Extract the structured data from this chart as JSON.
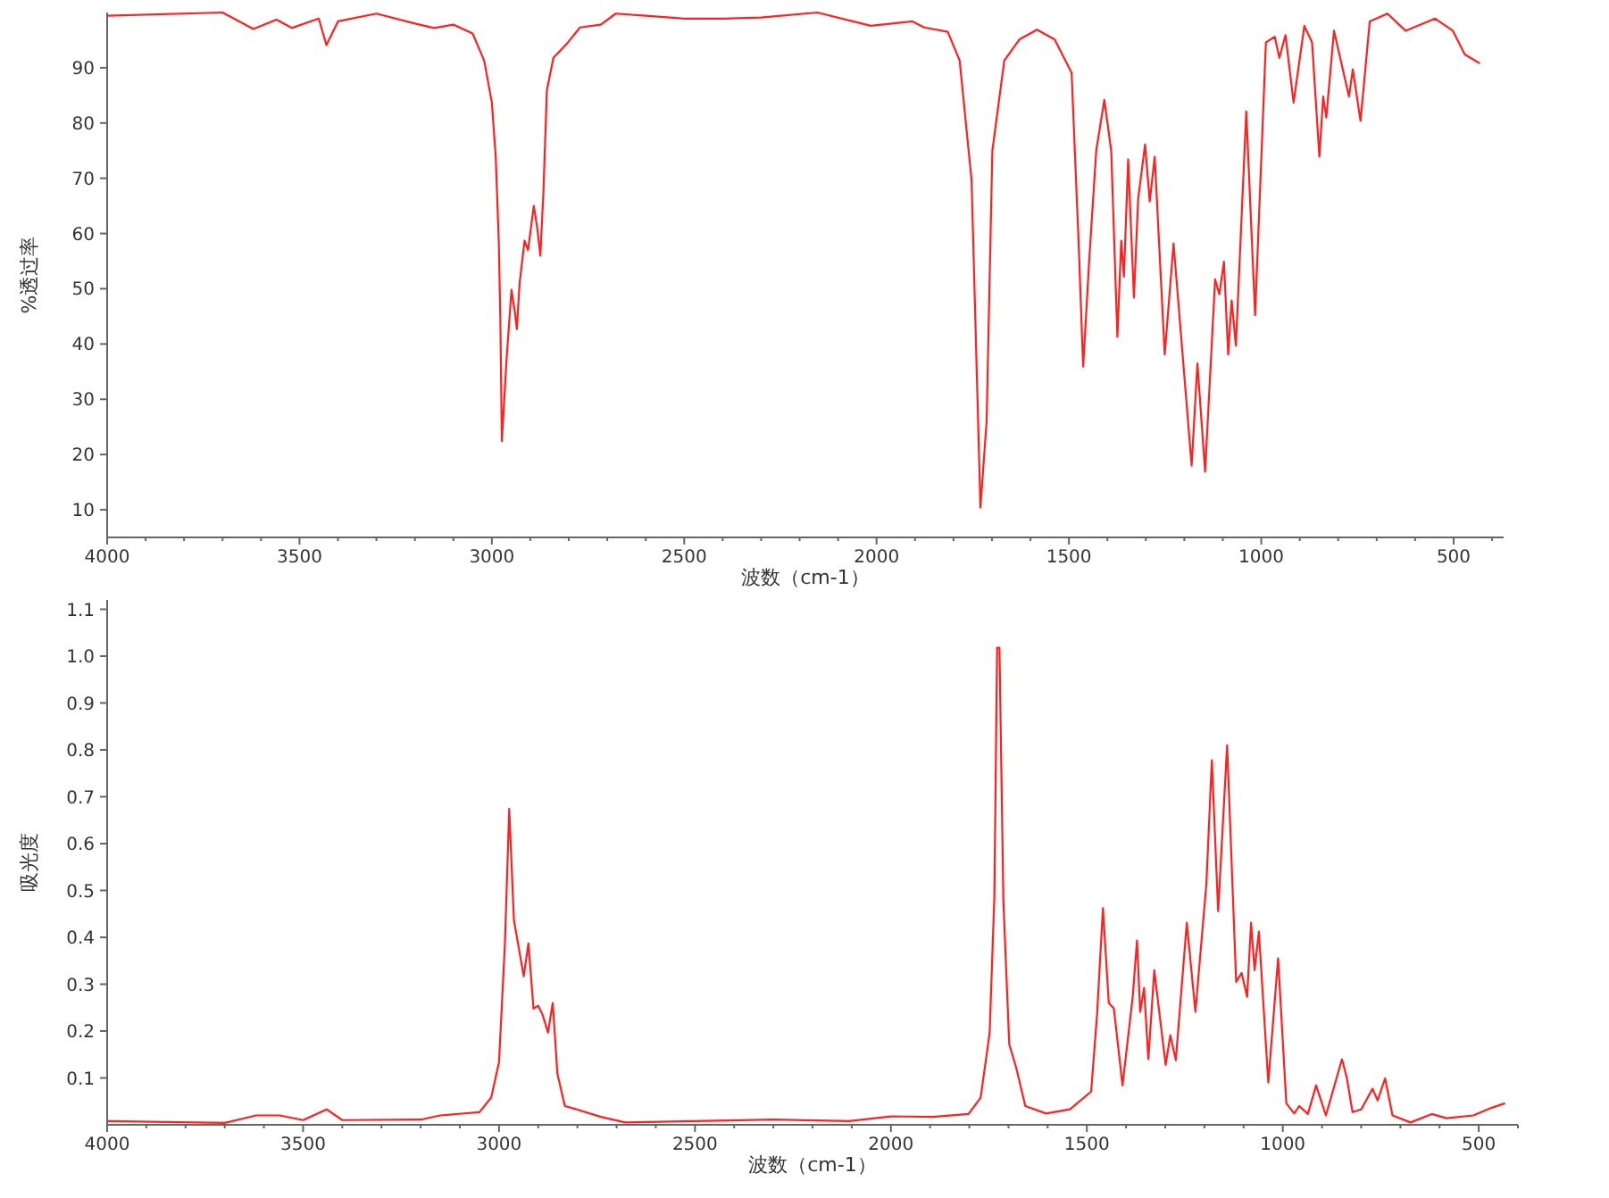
{
  "chart_data": [
    {
      "type": "line",
      "ylabel": "%透过率",
      "xlabel": "波数（cm-1）",
      "xlim": [
        4000,
        370
      ],
      "ylim": [
        5,
        100
      ],
      "xticks": [
        4000,
        {
          "value": 3900,
          "label": null
        },
        {
          "value": 3800,
          "label": null
        },
        {
          "value": 3700,
          "label": null
        },
        {
          "value": 3600,
          "label": null
        },
        3500,
        {
          "value": 3400,
          "label": null
        },
        {
          "value": 3300,
          "label": null
        },
        {
          "value": 3200,
          "label": null
        },
        {
          "value": 3100,
          "label": null
        },
        3000,
        {
          "value": 2900,
          "label": null
        },
        {
          "value": 2800,
          "label": null
        },
        {
          "value": 2700,
          "label": null
        },
        {
          "value": 2600,
          "label": null
        },
        2500,
        {
          "value": 2400,
          "label": null
        },
        {
          "value": 2300,
          "label": null
        },
        {
          "value": 2200,
          "label": null
        },
        {
          "value": 2100,
          "label": null
        },
        2000,
        {
          "value": 1900,
          "label": null
        },
        {
          "value": 1800,
          "label": null
        },
        {
          "value": 1700,
          "label": null
        },
        {
          "value": 1600,
          "label": null
        },
        1500,
        {
          "value": 1400,
          "label": null
        },
        {
          "value": 1300,
          "label": null
        },
        {
          "value": 1200,
          "label": null
        },
        {
          "value": 1100,
          "label": null
        },
        1000,
        {
          "value": 900,
          "label": null
        },
        {
          "value": 800,
          "label": null
        },
        {
          "value": 700,
          "label": null
        },
        {
          "value": 600,
          "label": null
        },
        500,
        {
          "value": 400,
          "label": null
        }
      ],
      "yticks": [
        10,
        20,
        30,
        40,
        50,
        60,
        70,
        80,
        90
      ],
      "series": [
        {
          "color": "#ff2020",
          "x": [
            4000,
            3700,
            3620,
            3560,
            3520,
            3450,
            3430,
            3400,
            3300,
            3200,
            3150,
            3100,
            3050,
            3020,
            3000,
            2990,
            2982,
            2978,
            2974,
            2962,
            2949,
            2940,
            2935,
            2928,
            2915,
            2906,
            2891,
            2882,
            2874,
            2866,
            2857,
            2840,
            2802,
            2771,
            2717,
            2678,
            2600,
            2500,
            2400,
            2300,
            2154,
            2015,
            1907,
            1876,
            1815,
            1784,
            1753,
            1730,
            1714,
            1699,
            1668,
            1629,
            1583,
            1537,
            1493,
            1475,
            1463,
            1447,
            1429,
            1408,
            1390,
            1374,
            1364,
            1357,
            1346,
            1331,
            1320,
            1302,
            1290,
            1277,
            1251,
            1228,
            1181,
            1166,
            1146,
            1120,
            1109,
            1097,
            1086,
            1077,
            1066,
            1039,
            1016,
            988,
            965,
            953,
            937,
            916,
            888,
            868,
            849,
            839,
            831,
            811,
            772,
            762,
            742,
            718,
            672,
            625,
            548,
            502,
            471,
            432
          ],
          "values": [
            99.4,
            100,
            97,
            98.7,
            97.2,
            98.9,
            94.1,
            98.4,
            99.8,
            98,
            97.2,
            97.8,
            96.2,
            91.3,
            83.7,
            73.9,
            58.7,
            44.6,
            22.4,
            37,
            49.8,
            45.7,
            42.7,
            51,
            58.7,
            57,
            65,
            61,
            56,
            67.4,
            85.9,
            91.8,
            94.6,
            97.3,
            97.8,
            99.8,
            99.4,
            98.9,
            98.9,
            99.1,
            100,
            97.6,
            98.4,
            97.3,
            96.5,
            91.3,
            69.6,
            10.4,
            26,
            75,
            91.3,
            95.1,
            96.9,
            95.1,
            89.1,
            58.7,
            35.9,
            55.5,
            75,
            84.2,
            75,
            41.3,
            58.7,
            52.2,
            73.4,
            48.4,
            66.3,
            76.1,
            65.8,
            73.9,
            38.1,
            58.2,
            18,
            36.5,
            16.9,
            51.7,
            49,
            54.9,
            38.1,
            47.9,
            39.7,
            82.1,
            45.2,
            94.6,
            95.6,
            91.8,
            95.9,
            83.7,
            97.6,
            94.6,
            73.9,
            84.8,
            81,
            96.7,
            84.8,
            89.7,
            80.4,
            98.4,
            99.8,
            96.7,
            98.9,
            96.7,
            92.4,
            90.8
          ]
        }
      ]
    },
    {
      "type": "line",
      "ylabel": "吸光度",
      "xlabel": "波数（cm-1）",
      "xlim": [
        4000,
        400
      ],
      "ylim": [
        0,
        1.12
      ],
      "xticks": [
        4000,
        {
          "value": 3900,
          "label": null
        },
        {
          "value": 3800,
          "label": null
        },
        {
          "value": 3700,
          "label": null
        },
        {
          "value": 3600,
          "label": null
        },
        3500,
        {
          "value": 3400,
          "label": null
        },
        {
          "value": 3300,
          "label": null
        },
        {
          "value": 3200,
          "label": null
        },
        {
          "value": 3100,
          "label": null
        },
        3000,
        {
          "value": 2900,
          "label": null
        },
        {
          "value": 2800,
          "label": null
        },
        {
          "value": 2700,
          "label": null
        },
        {
          "value": 2600,
          "label": null
        },
        2500,
        {
          "value": 2400,
          "label": null
        },
        {
          "value": 2300,
          "label": null
        },
        {
          "value": 2200,
          "label": null
        },
        {
          "value": 2100,
          "label": null
        },
        2000,
        {
          "value": 1900,
          "label": null
        },
        {
          "value": 1800,
          "label": null
        },
        {
          "value": 1700,
          "label": null
        },
        {
          "value": 1600,
          "label": null
        },
        1500,
        {
          "value": 1400,
          "label": null
        },
        {
          "value": 1300,
          "label": null
        },
        {
          "value": 1200,
          "label": null
        },
        {
          "value": 1100,
          "label": null
        },
        1000,
        {
          "value": 900,
          "label": null
        },
        {
          "value": 800,
          "label": null
        },
        {
          "value": 700,
          "label": null
        },
        {
          "value": 600,
          "label": null
        },
        500,
        {
          "value": 400,
          "label": null
        }
      ],
      "yticks": [
        0.1,
        0.2,
        0.3,
        0.4,
        0.5,
        0.6,
        0.7,
        0.8,
        0.9,
        {
          "value": 1,
          "label": "1.0"
        },
        1.1
      ],
      "series": [
        {
          "color": "#ff2020",
          "x": [
            4000,
            3700,
            3620,
            3560,
            3500,
            3440,
            3400,
            3200,
            3150,
            3050,
            3020,
            3000,
            2985,
            2974,
            2962,
            2937,
            2925,
            2912,
            2900,
            2889,
            2875,
            2863,
            2851,
            2832,
            2802,
            2740,
            2678,
            2500,
            2300,
            2107,
            2000,
            1893,
            1802,
            1771,
            1748,
            1736,
            1729,
            1723,
            1713,
            1698,
            1680,
            1657,
            1604,
            1543,
            1489,
            1474,
            1459,
            1444,
            1431,
            1409,
            1383,
            1372,
            1364,
            1354,
            1343,
            1328,
            1299,
            1287,
            1273,
            1245,
            1223,
            1195,
            1181,
            1165,
            1142,
            1119,
            1105,
            1091,
            1081,
            1072,
            1061,
            1037,
            1012,
            991,
            971,
            958,
            936,
            915,
            890,
            849,
            837,
            822,
            800,
            771,
            758,
            739,
            720,
            674,
            620,
            582,
            514,
            468,
            433
          ],
          "values": [
            0.008,
            0.004,
            0.02,
            0.02,
            0.01,
            0.033,
            0.01,
            0.011,
            0.02,
            0.027,
            0.058,
            0.134,
            0.387,
            0.674,
            0.437,
            0.317,
            0.387,
            0.248,
            0.254,
            0.235,
            0.197,
            0.26,
            0.109,
            0.04,
            0.033,
            0.017,
            0.005,
            0.008,
            0.011,
            0.008,
            0.018,
            0.017,
            0.023,
            0.058,
            0.197,
            0.488,
            1.018,
            1.018,
            0.476,
            0.172,
            0.121,
            0.04,
            0.024,
            0.033,
            0.071,
            0.235,
            0.462,
            0.26,
            0.248,
            0.084,
            0.273,
            0.393,
            0.241,
            0.292,
            0.14,
            0.33,
            0.128,
            0.191,
            0.138,
            0.431,
            0.241,
            0.514,
            0.778,
            0.456,
            0.81,
            0.305,
            0.324,
            0.273,
            0.431,
            0.33,
            0.412,
            0.09,
            0.355,
            0.046,
            0.024,
            0.04,
            0.023,
            0.084,
            0.02,
            0.14,
            0.102,
            0.027,
            0.033,
            0.077,
            0.052,
            0.099,
            0.02,
            0.005,
            0.023,
            0.014,
            0.02,
            0.036,
            0.046
          ]
        }
      ]
    }
  ]
}
